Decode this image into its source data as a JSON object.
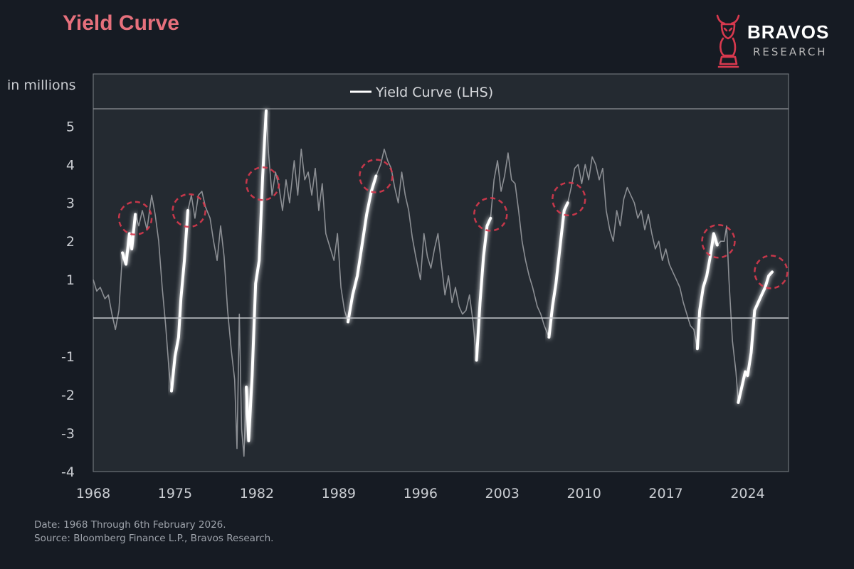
{
  "header": {
    "title": "Yield Curve",
    "brand_name": "BRAVOS",
    "brand_sub": "RESEARCH"
  },
  "colors": {
    "background": "#161b23",
    "plot_background": "#242a31",
    "title": "#e6707c",
    "line_dim": "#8c8f94",
    "line_bright": "#ffffff",
    "highlight_circle": "#d8394e",
    "axis_text": "#c9ccd1",
    "logo": "#d8394e"
  },
  "footer": {
    "line1": "Date: 1968 Through 6th February 2026.",
    "line2": "Source: Bloomberg Finance L.P., Bravos Research."
  },
  "chart_data": {
    "type": "line",
    "ylabel": "in millions",
    "xlim": [
      1968,
      2027.5
    ],
    "ylim": [
      -4,
      5.45
    ],
    "x_ticks": [
      1968,
      1975,
      1982,
      1989,
      1996,
      2003,
      2010,
      2017,
      2024
    ],
    "y_ticks": [
      5,
      4,
      3,
      2,
      1,
      -1,
      -2,
      -3,
      -4
    ],
    "legend": {
      "label": "Yield Curve (LHS)",
      "position": "top-center"
    },
    "zero_line": 0,
    "series": [
      {
        "name": "Yield Curve (LHS)",
        "points": [
          [
            1968.0,
            1.0
          ],
          [
            1968.3,
            0.7
          ],
          [
            1968.6,
            0.8
          ],
          [
            1969.0,
            0.5
          ],
          [
            1969.3,
            0.6
          ],
          [
            1969.6,
            0.1
          ],
          [
            1969.9,
            -0.3
          ],
          [
            1970.2,
            0.2
          ],
          [
            1970.5,
            1.7
          ],
          [
            1970.8,
            1.4
          ],
          [
            1971.1,
            2.2
          ],
          [
            1971.3,
            1.8
          ],
          [
            1971.6,
            2.7
          ],
          [
            1971.9,
            2.4
          ],
          [
            1972.2,
            2.8
          ],
          [
            1972.6,
            2.3
          ],
          [
            1973.0,
            3.2
          ],
          [
            1973.3,
            2.7
          ],
          [
            1973.6,
            2.0
          ],
          [
            1973.9,
            0.8
          ],
          [
            1974.2,
            -0.2
          ],
          [
            1974.5,
            -1.4
          ],
          [
            1974.7,
            -1.9
          ],
          [
            1975.0,
            -1.0
          ],
          [
            1975.3,
            -0.5
          ],
          [
            1975.5,
            0.5
          ],
          [
            1975.8,
            1.5
          ],
          [
            1976.1,
            2.8
          ],
          [
            1976.4,
            3.2
          ],
          [
            1976.7,
            2.6
          ],
          [
            1977.0,
            3.2
          ],
          [
            1977.3,
            3.3
          ],
          [
            1977.6,
            2.9
          ],
          [
            1978.0,
            2.6
          ],
          [
            1978.3,
            2.0
          ],
          [
            1978.6,
            1.5
          ],
          [
            1978.9,
            2.4
          ],
          [
            1979.2,
            1.6
          ],
          [
            1979.5,
            0.2
          ],
          [
            1979.8,
            -0.8
          ],
          [
            1980.1,
            -1.6
          ],
          [
            1980.3,
            -3.4
          ],
          [
            1980.5,
            0.1
          ],
          [
            1980.7,
            -2.9
          ],
          [
            1980.9,
            -3.6
          ],
          [
            1981.1,
            -1.8
          ],
          [
            1981.3,
            -3.2
          ],
          [
            1981.6,
            -1.5
          ],
          [
            1981.9,
            0.9
          ],
          [
            1982.2,
            1.5
          ],
          [
            1982.5,
            3.7
          ],
          [
            1982.8,
            5.4
          ],
          [
            1983.0,
            4.3
          ],
          [
            1983.3,
            3.2
          ],
          [
            1983.6,
            3.8
          ],
          [
            1983.9,
            3.4
          ],
          [
            1984.2,
            2.8
          ],
          [
            1984.5,
            3.6
          ],
          [
            1984.8,
            3.0
          ],
          [
            1985.2,
            4.1
          ],
          [
            1985.5,
            3.2
          ],
          [
            1985.8,
            4.4
          ],
          [
            1986.1,
            3.6
          ],
          [
            1986.4,
            3.8
          ],
          [
            1986.7,
            3.2
          ],
          [
            1987.0,
            3.9
          ],
          [
            1987.3,
            2.8
          ],
          [
            1987.6,
            3.5
          ],
          [
            1987.9,
            2.2
          ],
          [
            1988.2,
            1.9
          ],
          [
            1988.6,
            1.5
          ],
          [
            1988.9,
            2.2
          ],
          [
            1989.2,
            0.8
          ],
          [
            1989.5,
            0.2
          ],
          [
            1989.8,
            -0.1
          ],
          [
            1990.2,
            0.6
          ],
          [
            1990.6,
            1.1
          ],
          [
            1991.0,
            1.9
          ],
          [
            1991.4,
            2.7
          ],
          [
            1991.8,
            3.3
          ],
          [
            1992.2,
            3.7
          ],
          [
            1992.6,
            4.0
          ],
          [
            1992.9,
            4.4
          ],
          [
            1993.2,
            4.1
          ],
          [
            1993.5,
            3.9
          ],
          [
            1993.8,
            3.4
          ],
          [
            1994.1,
            3.0
          ],
          [
            1994.4,
            3.8
          ],
          [
            1994.7,
            3.2
          ],
          [
            1995.0,
            2.8
          ],
          [
            1995.3,
            2.1
          ],
          [
            1995.6,
            1.6
          ],
          [
            1996.0,
            1.0
          ],
          [
            1996.3,
            2.2
          ],
          [
            1996.6,
            1.6
          ],
          [
            1996.9,
            1.3
          ],
          [
            1997.2,
            1.8
          ],
          [
            1997.5,
            2.2
          ],
          [
            1997.8,
            1.4
          ],
          [
            1998.1,
            0.6
          ],
          [
            1998.4,
            1.1
          ],
          [
            1998.7,
            0.4
          ],
          [
            1999.0,
            0.8
          ],
          [
            1999.3,
            0.3
          ],
          [
            1999.6,
            0.1
          ],
          [
            1999.9,
            0.2
          ],
          [
            2000.2,
            0.6
          ],
          [
            2000.5,
            -0.1
          ],
          [
            2000.8,
            -1.1
          ],
          [
            2001.1,
            0.4
          ],
          [
            2001.4,
            1.6
          ],
          [
            2001.7,
            2.4
          ],
          [
            2002.0,
            2.6
          ],
          [
            2002.3,
            3.6
          ],
          [
            2002.6,
            4.1
          ],
          [
            2002.9,
            3.3
          ],
          [
            2003.2,
            3.7
          ],
          [
            2003.5,
            4.3
          ],
          [
            2003.8,
            3.6
          ],
          [
            2004.1,
            3.5
          ],
          [
            2004.4,
            2.8
          ],
          [
            2004.7,
            2.0
          ],
          [
            2005.0,
            1.5
          ],
          [
            2005.3,
            1.1
          ],
          [
            2005.6,
            0.8
          ],
          [
            2006.0,
            0.3
          ],
          [
            2006.3,
            0.1
          ],
          [
            2006.6,
            -0.2
          ],
          [
            2007.0,
            -0.5
          ],
          [
            2007.3,
            0.3
          ],
          [
            2007.6,
            0.9
          ],
          [
            2008.0,
            2.0
          ],
          [
            2008.3,
            2.8
          ],
          [
            2008.6,
            3.0
          ],
          [
            2008.9,
            3.4
          ],
          [
            2009.2,
            3.9
          ],
          [
            2009.5,
            4.0
          ],
          [
            2009.8,
            3.5
          ],
          [
            2010.1,
            4.0
          ],
          [
            2010.4,
            3.6
          ],
          [
            2010.7,
            4.2
          ],
          [
            2011.0,
            4.0
          ],
          [
            2011.3,
            3.6
          ],
          [
            2011.6,
            3.9
          ],
          [
            2011.9,
            2.8
          ],
          [
            2012.2,
            2.3
          ],
          [
            2012.5,
            2.0
          ],
          [
            2012.8,
            2.8
          ],
          [
            2013.1,
            2.4
          ],
          [
            2013.4,
            3.1
          ],
          [
            2013.7,
            3.4
          ],
          [
            2014.0,
            3.2
          ],
          [
            2014.3,
            3.0
          ],
          [
            2014.6,
            2.6
          ],
          [
            2014.9,
            2.8
          ],
          [
            2015.2,
            2.3
          ],
          [
            2015.5,
            2.7
          ],
          [
            2015.8,
            2.2
          ],
          [
            2016.1,
            1.8
          ],
          [
            2016.4,
            2.0
          ],
          [
            2016.7,
            1.5
          ],
          [
            2017.0,
            1.8
          ],
          [
            2017.3,
            1.4
          ],
          [
            2017.6,
            1.2
          ],
          [
            2017.9,
            1.0
          ],
          [
            2018.2,
            0.8
          ],
          [
            2018.5,
            0.4
          ],
          [
            2018.8,
            0.1
          ],
          [
            2019.1,
            -0.2
          ],
          [
            2019.4,
            -0.3
          ],
          [
            2019.7,
            -0.8
          ],
          [
            2019.9,
            0.2
          ],
          [
            2020.2,
            0.8
          ],
          [
            2020.5,
            1.1
          ],
          [
            2020.8,
            1.6
          ],
          [
            2021.1,
            2.2
          ],
          [
            2021.4,
            1.9
          ],
          [
            2021.7,
            2.0
          ],
          [
            2022.0,
            2.0
          ],
          [
            2022.2,
            2.4
          ],
          [
            2022.4,
            1.0
          ],
          [
            2022.7,
            -0.6
          ],
          [
            2023.0,
            -1.4
          ],
          [
            2023.2,
            -2.2
          ],
          [
            2023.5,
            -1.8
          ],
          [
            2023.8,
            -1.4
          ],
          [
            2024.0,
            -1.5
          ],
          [
            2024.3,
            -0.9
          ],
          [
            2024.6,
            0.2
          ],
          [
            2024.9,
            0.4
          ],
          [
            2025.2,
            0.6
          ],
          [
            2025.5,
            0.8
          ],
          [
            2025.8,
            1.1
          ],
          [
            2026.1,
            1.2
          ]
        ]
      }
    ],
    "highlight_ranges": [
      [
        1970.3,
        1971.7
      ],
      [
        1974.6,
        1976.3
      ],
      [
        1981.1,
        1982.9
      ],
      [
        1989.7,
        1992.3
      ],
      [
        2000.7,
        2002.1
      ],
      [
        2006.9,
        2008.8
      ],
      [
        2019.5,
        2021.6
      ],
      [
        2023.1,
        2026.1
      ]
    ],
    "highlight_markers": [
      [
        1971.6,
        2.6
      ],
      [
        1976.2,
        2.8
      ],
      [
        1982.5,
        3.5
      ],
      [
        1992.2,
        3.7
      ],
      [
        2002.0,
        2.7
      ],
      [
        2008.7,
        3.1
      ],
      [
        2021.5,
        2.0
      ],
      [
        2026.0,
        1.2
      ]
    ]
  }
}
